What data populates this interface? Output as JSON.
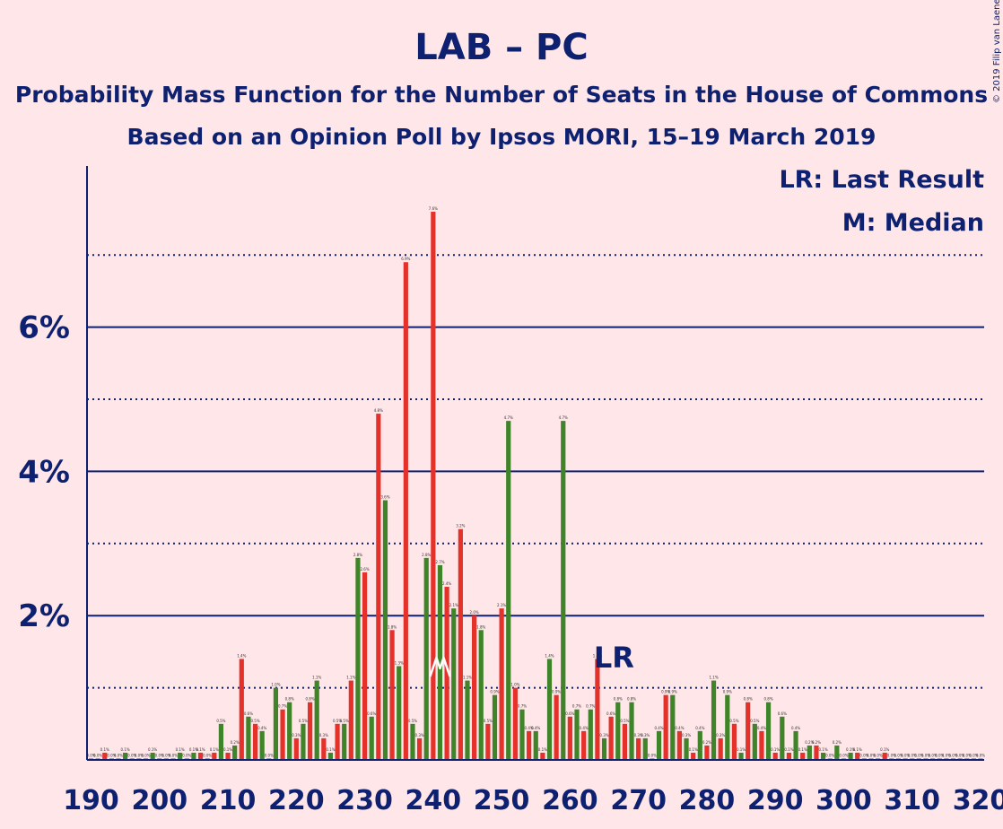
{
  "title": "LAB – PC",
  "subtitle1": "Probability Mass Function for the Number of Seats in the House of Commons",
  "subtitle2": "Based on an Opinion Poll by Ipsos MORI, 15–19 March 2019",
  "copyright": "© 2019 Filip van Laenen",
  "legend": {
    "lr": "LR: Last Result",
    "m": "M: Median"
  },
  "markers": {
    "lr_label": "LR",
    "lr_seat": 264,
    "median_label": "M",
    "median_seat": 241
  },
  "colors": {
    "red": "#E4322B",
    "green": "#3F8428",
    "axis": "#0D2170",
    "background": "#FFE6E8"
  },
  "chart_data": {
    "type": "bar",
    "title": "LAB – PC",
    "xlabel": "",
    "ylabel": "",
    "xlim": [
      190,
      320
    ],
    "ylim": [
      0,
      7.6
    ],
    "x_ticks": [
      "190",
      "200",
      "210",
      "220",
      "230",
      "240",
      "250",
      "260",
      "270",
      "280",
      "290",
      "300",
      "310",
      "320"
    ],
    "y_ticks": [
      {
        "value": 2,
        "label": "2%"
      },
      {
        "value": 4,
        "label": "4%"
      },
      {
        "value": 6,
        "label": "6%"
      }
    ],
    "minor_gridlines": [
      1,
      3,
      5,
      7
    ],
    "bars": [
      {
        "seat": 190,
        "value": 0.0,
        "color": "green"
      },
      {
        "seat": 191,
        "value": 0.0,
        "color": "green"
      },
      {
        "seat": 192,
        "value": 0.1,
        "color": "red"
      },
      {
        "seat": 193,
        "value": 0.0,
        "color": "green"
      },
      {
        "seat": 194,
        "value": 0.0,
        "color": "green"
      },
      {
        "seat": 195,
        "value": 0.1,
        "color": "green"
      },
      {
        "seat": 196,
        "value": 0.0,
        "color": "green"
      },
      {
        "seat": 197,
        "value": 0.0,
        "color": "green"
      },
      {
        "seat": 198,
        "value": 0.0,
        "color": "green"
      },
      {
        "seat": 199,
        "value": 0.1,
        "color": "green"
      },
      {
        "seat": 200,
        "value": 0.0,
        "color": "green"
      },
      {
        "seat": 201,
        "value": 0.0,
        "color": "green"
      },
      {
        "seat": 202,
        "value": 0.0,
        "color": "green"
      },
      {
        "seat": 203,
        "value": 0.1,
        "color": "green"
      },
      {
        "seat": 204,
        "value": 0.0,
        "color": "green"
      },
      {
        "seat": 205,
        "value": 0.1,
        "color": "green"
      },
      {
        "seat": 206,
        "value": 0.1,
        "color": "red"
      },
      {
        "seat": 207,
        "value": 0.0,
        "color": "green"
      },
      {
        "seat": 208,
        "value": 0.1,
        "color": "red"
      },
      {
        "seat": 209,
        "value": 0.5,
        "color": "green"
      },
      {
        "seat": 210,
        "value": 0.1,
        "color": "red"
      },
      {
        "seat": 211,
        "value": 0.2,
        "color": "green"
      },
      {
        "seat": 212,
        "value": 1.4,
        "color": "red"
      },
      {
        "seat": 213,
        "value": 0.6,
        "color": "green"
      },
      {
        "seat": 214,
        "value": 0.5,
        "color": "red"
      },
      {
        "seat": 215,
        "value": 0.4,
        "color": "green"
      },
      {
        "seat": 216,
        "value": 0.0,
        "color": "green"
      },
      {
        "seat": 217,
        "value": 1.0,
        "color": "green"
      },
      {
        "seat": 218,
        "value": 0.7,
        "color": "red"
      },
      {
        "seat": 219,
        "value": 0.8,
        "color": "green"
      },
      {
        "seat": 220,
        "value": 0.3,
        "color": "red"
      },
      {
        "seat": 221,
        "value": 0.5,
        "color": "green"
      },
      {
        "seat": 222,
        "value": 0.8,
        "color": "red"
      },
      {
        "seat": 223,
        "value": 1.1,
        "color": "green"
      },
      {
        "seat": 224,
        "value": 0.3,
        "color": "red"
      },
      {
        "seat": 225,
        "value": 0.1,
        "color": "green"
      },
      {
        "seat": 226,
        "value": 0.5,
        "color": "red"
      },
      {
        "seat": 227,
        "value": 0.5,
        "color": "green"
      },
      {
        "seat": 228,
        "value": 1.1,
        "color": "red"
      },
      {
        "seat": 229,
        "value": 2.8,
        "color": "green"
      },
      {
        "seat": 230,
        "value": 2.6,
        "color": "red"
      },
      {
        "seat": 231,
        "value": 0.6,
        "color": "green"
      },
      {
        "seat": 232,
        "value": 4.8,
        "color": "red"
      },
      {
        "seat": 233,
        "value": 3.6,
        "color": "green"
      },
      {
        "seat": 234,
        "value": 1.8,
        "color": "red"
      },
      {
        "seat": 235,
        "value": 1.3,
        "color": "green"
      },
      {
        "seat": 236,
        "value": 6.9,
        "color": "red"
      },
      {
        "seat": 237,
        "value": 0.5,
        "color": "green"
      },
      {
        "seat": 238,
        "value": 0.3,
        "color": "red"
      },
      {
        "seat": 239,
        "value": 2.8,
        "color": "green"
      },
      {
        "seat": 240,
        "value": 7.6,
        "color": "red"
      },
      {
        "seat": 241,
        "value": 2.7,
        "color": "green"
      },
      {
        "seat": 242,
        "value": 2.4,
        "color": "red"
      },
      {
        "seat": 243,
        "value": 2.1,
        "color": "green"
      },
      {
        "seat": 244,
        "value": 3.2,
        "color": "red"
      },
      {
        "seat": 245,
        "value": 1.1,
        "color": "green"
      },
      {
        "seat": 246,
        "value": 2.0,
        "color": "red"
      },
      {
        "seat": 247,
        "value": 1.8,
        "color": "green"
      },
      {
        "seat": 248,
        "value": 0.5,
        "color": "red"
      },
      {
        "seat": 249,
        "value": 0.9,
        "color": "green"
      },
      {
        "seat": 250,
        "value": 2.1,
        "color": "red"
      },
      {
        "seat": 251,
        "value": 4.7,
        "color": "green"
      },
      {
        "seat": 252,
        "value": 1.0,
        "color": "red"
      },
      {
        "seat": 253,
        "value": 0.7,
        "color": "green"
      },
      {
        "seat": 254,
        "value": 0.4,
        "color": "red"
      },
      {
        "seat": 255,
        "value": 0.4,
        "color": "green"
      },
      {
        "seat": 256,
        "value": 0.1,
        "color": "red"
      },
      {
        "seat": 257,
        "value": 1.4,
        "color": "green"
      },
      {
        "seat": 258,
        "value": 0.9,
        "color": "red"
      },
      {
        "seat": 259,
        "value": 4.7,
        "color": "green"
      },
      {
        "seat": 260,
        "value": 0.6,
        "color": "red"
      },
      {
        "seat": 261,
        "value": 0.7,
        "color": "green"
      },
      {
        "seat": 262,
        "value": 0.4,
        "color": "red"
      },
      {
        "seat": 263,
        "value": 0.7,
        "color": "green"
      },
      {
        "seat": 264,
        "value": 1.4,
        "color": "red"
      },
      {
        "seat": 265,
        "value": 0.3,
        "color": "green"
      },
      {
        "seat": 266,
        "value": 0.6,
        "color": "red"
      },
      {
        "seat": 267,
        "value": 0.8,
        "color": "green"
      },
      {
        "seat": 268,
        "value": 0.5,
        "color": "red"
      },
      {
        "seat": 269,
        "value": 0.8,
        "color": "green"
      },
      {
        "seat": 270,
        "value": 0.3,
        "color": "red"
      },
      {
        "seat": 271,
        "value": 0.3,
        "color": "green"
      },
      {
        "seat": 272,
        "value": 0.0,
        "color": "red"
      },
      {
        "seat": 273,
        "value": 0.4,
        "color": "green"
      },
      {
        "seat": 274,
        "value": 0.9,
        "color": "red"
      },
      {
        "seat": 275,
        "value": 0.9,
        "color": "green"
      },
      {
        "seat": 276,
        "value": 0.4,
        "color": "red"
      },
      {
        "seat": 277,
        "value": 0.3,
        "color": "green"
      },
      {
        "seat": 278,
        "value": 0.1,
        "color": "red"
      },
      {
        "seat": 279,
        "value": 0.4,
        "color": "green"
      },
      {
        "seat": 280,
        "value": 0.2,
        "color": "red"
      },
      {
        "seat": 281,
        "value": 1.1,
        "color": "green"
      },
      {
        "seat": 282,
        "value": 0.3,
        "color": "red"
      },
      {
        "seat": 283,
        "value": 0.9,
        "color": "green"
      },
      {
        "seat": 284,
        "value": 0.5,
        "color": "red"
      },
      {
        "seat": 285,
        "value": 0.1,
        "color": "green"
      },
      {
        "seat": 286,
        "value": 0.8,
        "color": "red"
      },
      {
        "seat": 287,
        "value": 0.5,
        "color": "green"
      },
      {
        "seat": 288,
        "value": 0.4,
        "color": "red"
      },
      {
        "seat": 289,
        "value": 0.8,
        "color": "green"
      },
      {
        "seat": 290,
        "value": 0.1,
        "color": "red"
      },
      {
        "seat": 291,
        "value": 0.6,
        "color": "green"
      },
      {
        "seat": 292,
        "value": 0.1,
        "color": "red"
      },
      {
        "seat": 293,
        "value": 0.4,
        "color": "green"
      },
      {
        "seat": 294,
        "value": 0.1,
        "color": "red"
      },
      {
        "seat": 295,
        "value": 0.2,
        "color": "green"
      },
      {
        "seat": 296,
        "value": 0.2,
        "color": "red"
      },
      {
        "seat": 297,
        "value": 0.1,
        "color": "green"
      },
      {
        "seat": 298,
        "value": 0.0,
        "color": "red"
      },
      {
        "seat": 299,
        "value": 0.2,
        "color": "green"
      },
      {
        "seat": 300,
        "value": 0.0,
        "color": "red"
      },
      {
        "seat": 301,
        "value": 0.1,
        "color": "green"
      },
      {
        "seat": 302,
        "value": 0.1,
        "color": "red"
      },
      {
        "seat": 303,
        "value": 0.0,
        "color": "green"
      },
      {
        "seat": 304,
        "value": 0.0,
        "color": "red"
      },
      {
        "seat": 305,
        "value": 0.0,
        "color": "green"
      },
      {
        "seat": 306,
        "value": 0.1,
        "color": "red"
      },
      {
        "seat": 307,
        "value": 0.0,
        "color": "green"
      },
      {
        "seat": 308,
        "value": 0.0,
        "color": "red"
      },
      {
        "seat": 309,
        "value": 0.0,
        "color": "green"
      },
      {
        "seat": 310,
        "value": 0.0,
        "color": "red"
      },
      {
        "seat": 311,
        "value": 0.0,
        "color": "green"
      },
      {
        "seat": 312,
        "value": 0.0,
        "color": "red"
      },
      {
        "seat": 313,
        "value": 0.0,
        "color": "green"
      },
      {
        "seat": 314,
        "value": 0.0,
        "color": "red"
      },
      {
        "seat": 315,
        "value": 0.0,
        "color": "green"
      },
      {
        "seat": 316,
        "value": 0.0,
        "color": "red"
      },
      {
        "seat": 317,
        "value": 0.0,
        "color": "green"
      },
      {
        "seat": 318,
        "value": 0.0,
        "color": "red"
      },
      {
        "seat": 319,
        "value": 0.0,
        "color": "green"
      },
      {
        "seat": 320,
        "value": 0.0,
        "color": "red"
      }
    ]
  }
}
